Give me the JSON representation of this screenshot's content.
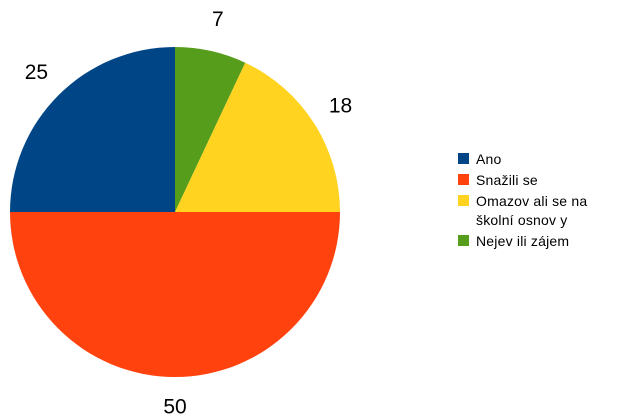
{
  "chart_data": {
    "type": "pie",
    "title": "",
    "categories": [
      "Ano",
      "Snažili se",
      "Omazovali se na školní osnovy",
      "Nejevili zájem"
    ],
    "values": [
      25,
      50,
      18,
      7
    ],
    "data_labels": [
      "25",
      "50",
      "18",
      "7"
    ],
    "colors": [
      "#004586",
      "#ff420e",
      "#ffd320",
      "#579d1c"
    ],
    "legend_position": "right",
    "legend": {
      "items": [
        {
          "label": "Ano",
          "color": "#004586"
        },
        {
          "label": "Snažili se",
          "color": "#ff420e"
        },
        {
          "label": "Omazov ali se na školní osnov y",
          "color": "#ffd320"
        },
        {
          "label": "Nejev ili zájem",
          "color": "#579d1c"
        }
      ]
    }
  }
}
